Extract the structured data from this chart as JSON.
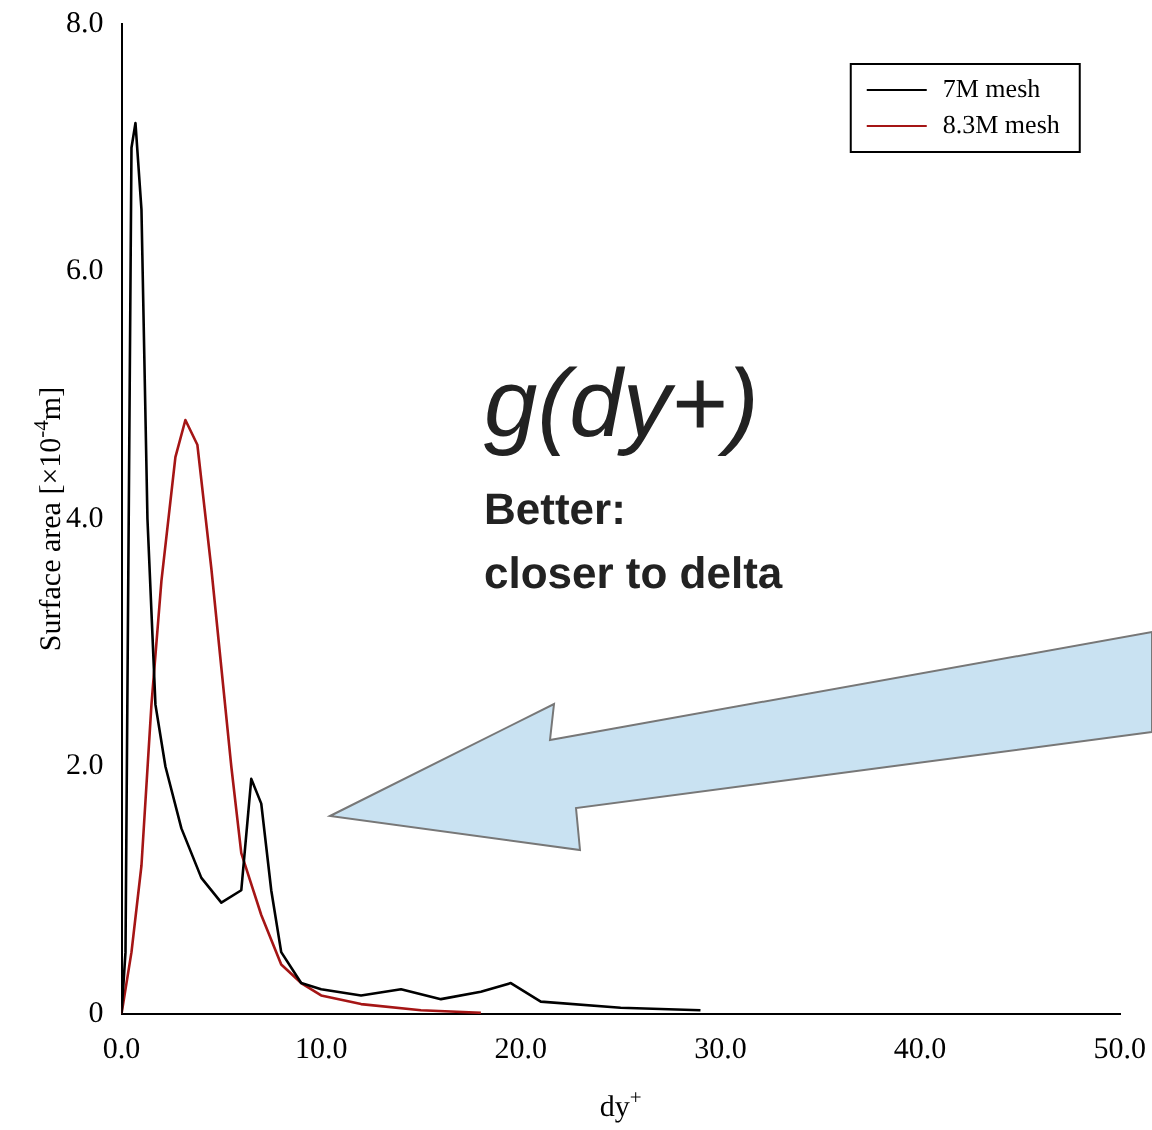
{
  "chart_data": {
    "type": "line",
    "xlabel": "dy$^{+}$",
    "ylabel": "Surface area [×10$^{-4}$m]",
    "xlim": [
      0,
      50
    ],
    "xticks": [
      {
        "value": 0,
        "label": "0.0"
      },
      {
        "value": 10,
        "label": "10.0"
      },
      {
        "value": 20,
        "label": "20.0"
      },
      {
        "value": 30,
        "label": "30.0"
      },
      {
        "value": 40,
        "label": "40.0"
      },
      {
        "value": 50,
        "label": "50.0"
      }
    ],
    "ylim": [
      0,
      8
    ],
    "yticks": [
      {
        "value": 0,
        "label": "0"
      },
      {
        "value": 2,
        "label": "2.0"
      },
      {
        "value": 4,
        "label": "4.0"
      },
      {
        "value": 6,
        "label": "6.0"
      },
      {
        "value": 8,
        "label": "8.0"
      }
    ],
    "grid": false,
    "legend": "top right",
    "marker": "none",
    "line_style": "solid",
    "series": [
      {
        "name": "7M mesh",
        "color": "#000000",
        "x": [
          0,
          0.2,
          0.5,
          0.7,
          1.0,
          1.3,
          1.7,
          2.2,
          3,
          4,
          5,
          6,
          6.5,
          7,
          7.5,
          8,
          9,
          10,
          12,
          14,
          16,
          18,
          19.5,
          21,
          25,
          29
        ],
        "values": [
          0,
          0.5,
          7.0,
          7.2,
          6.5,
          4.0,
          2.5,
          2.0,
          1.5,
          1.1,
          0.9,
          1.0,
          1.9,
          1.7,
          1.0,
          0.5,
          0.25,
          0.2,
          0.15,
          0.2,
          0.12,
          0.18,
          0.25,
          0.1,
          0.05,
          0.03
        ]
      },
      {
        "name": "8.3M mesh",
        "color": "#a51515",
        "x": [
          0,
          0.5,
          1,
          1.5,
          2,
          2.7,
          3.2,
          3.8,
          4.5,
          5,
          5.5,
          6,
          7,
          8,
          9,
          10,
          12,
          15,
          18
        ],
        "values": [
          0,
          0.5,
          1.2,
          2.5,
          3.5,
          4.5,
          4.8,
          4.6,
          3.6,
          2.8,
          2.0,
          1.3,
          0.8,
          0.4,
          0.25,
          0.15,
          0.08,
          0.03,
          0.01
        ]
      }
    ],
    "annotations": [
      "g(dy+)",
      "Better:",
      "closer to delta"
    ]
  }
}
